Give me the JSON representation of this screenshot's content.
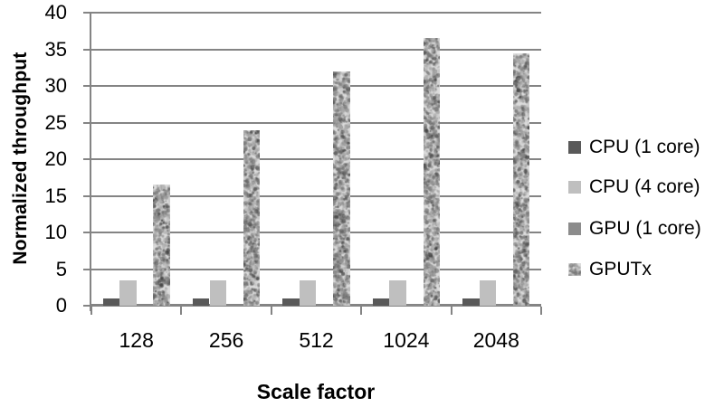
{
  "chart_data": {
    "type": "bar",
    "title": "",
    "xlabel": "Scale factor",
    "ylabel": "Normalized throughput",
    "categories": [
      "128",
      "256",
      "512",
      "1024",
      "2048"
    ],
    "series": [
      {
        "name": "CPU (1 core)",
        "color": "#595959",
        "style": "solid",
        "values": [
          1,
          1,
          1,
          1,
          1
        ]
      },
      {
        "name": "CPU (4 core)",
        "color": "#bfbfbf",
        "style": "solid",
        "values": [
          3.5,
          3.5,
          3.5,
          3.5,
          3.5
        ]
      },
      {
        "name": "GPU (1 core)",
        "color": "#8c8c8c",
        "style": "solid",
        "values": [
          0.1,
          0.1,
          0.1,
          0.1,
          0.1
        ]
      },
      {
        "name": "GPUTx",
        "color": "#d9d9d9",
        "style": "speckled",
        "values": [
          16.5,
          24,
          32,
          36.5,
          34.5
        ]
      }
    ],
    "ylim": [
      0,
      40
    ],
    "ytick_step": 5,
    "grid": true,
    "legend_position": "right",
    "axis_color": "#848484"
  }
}
